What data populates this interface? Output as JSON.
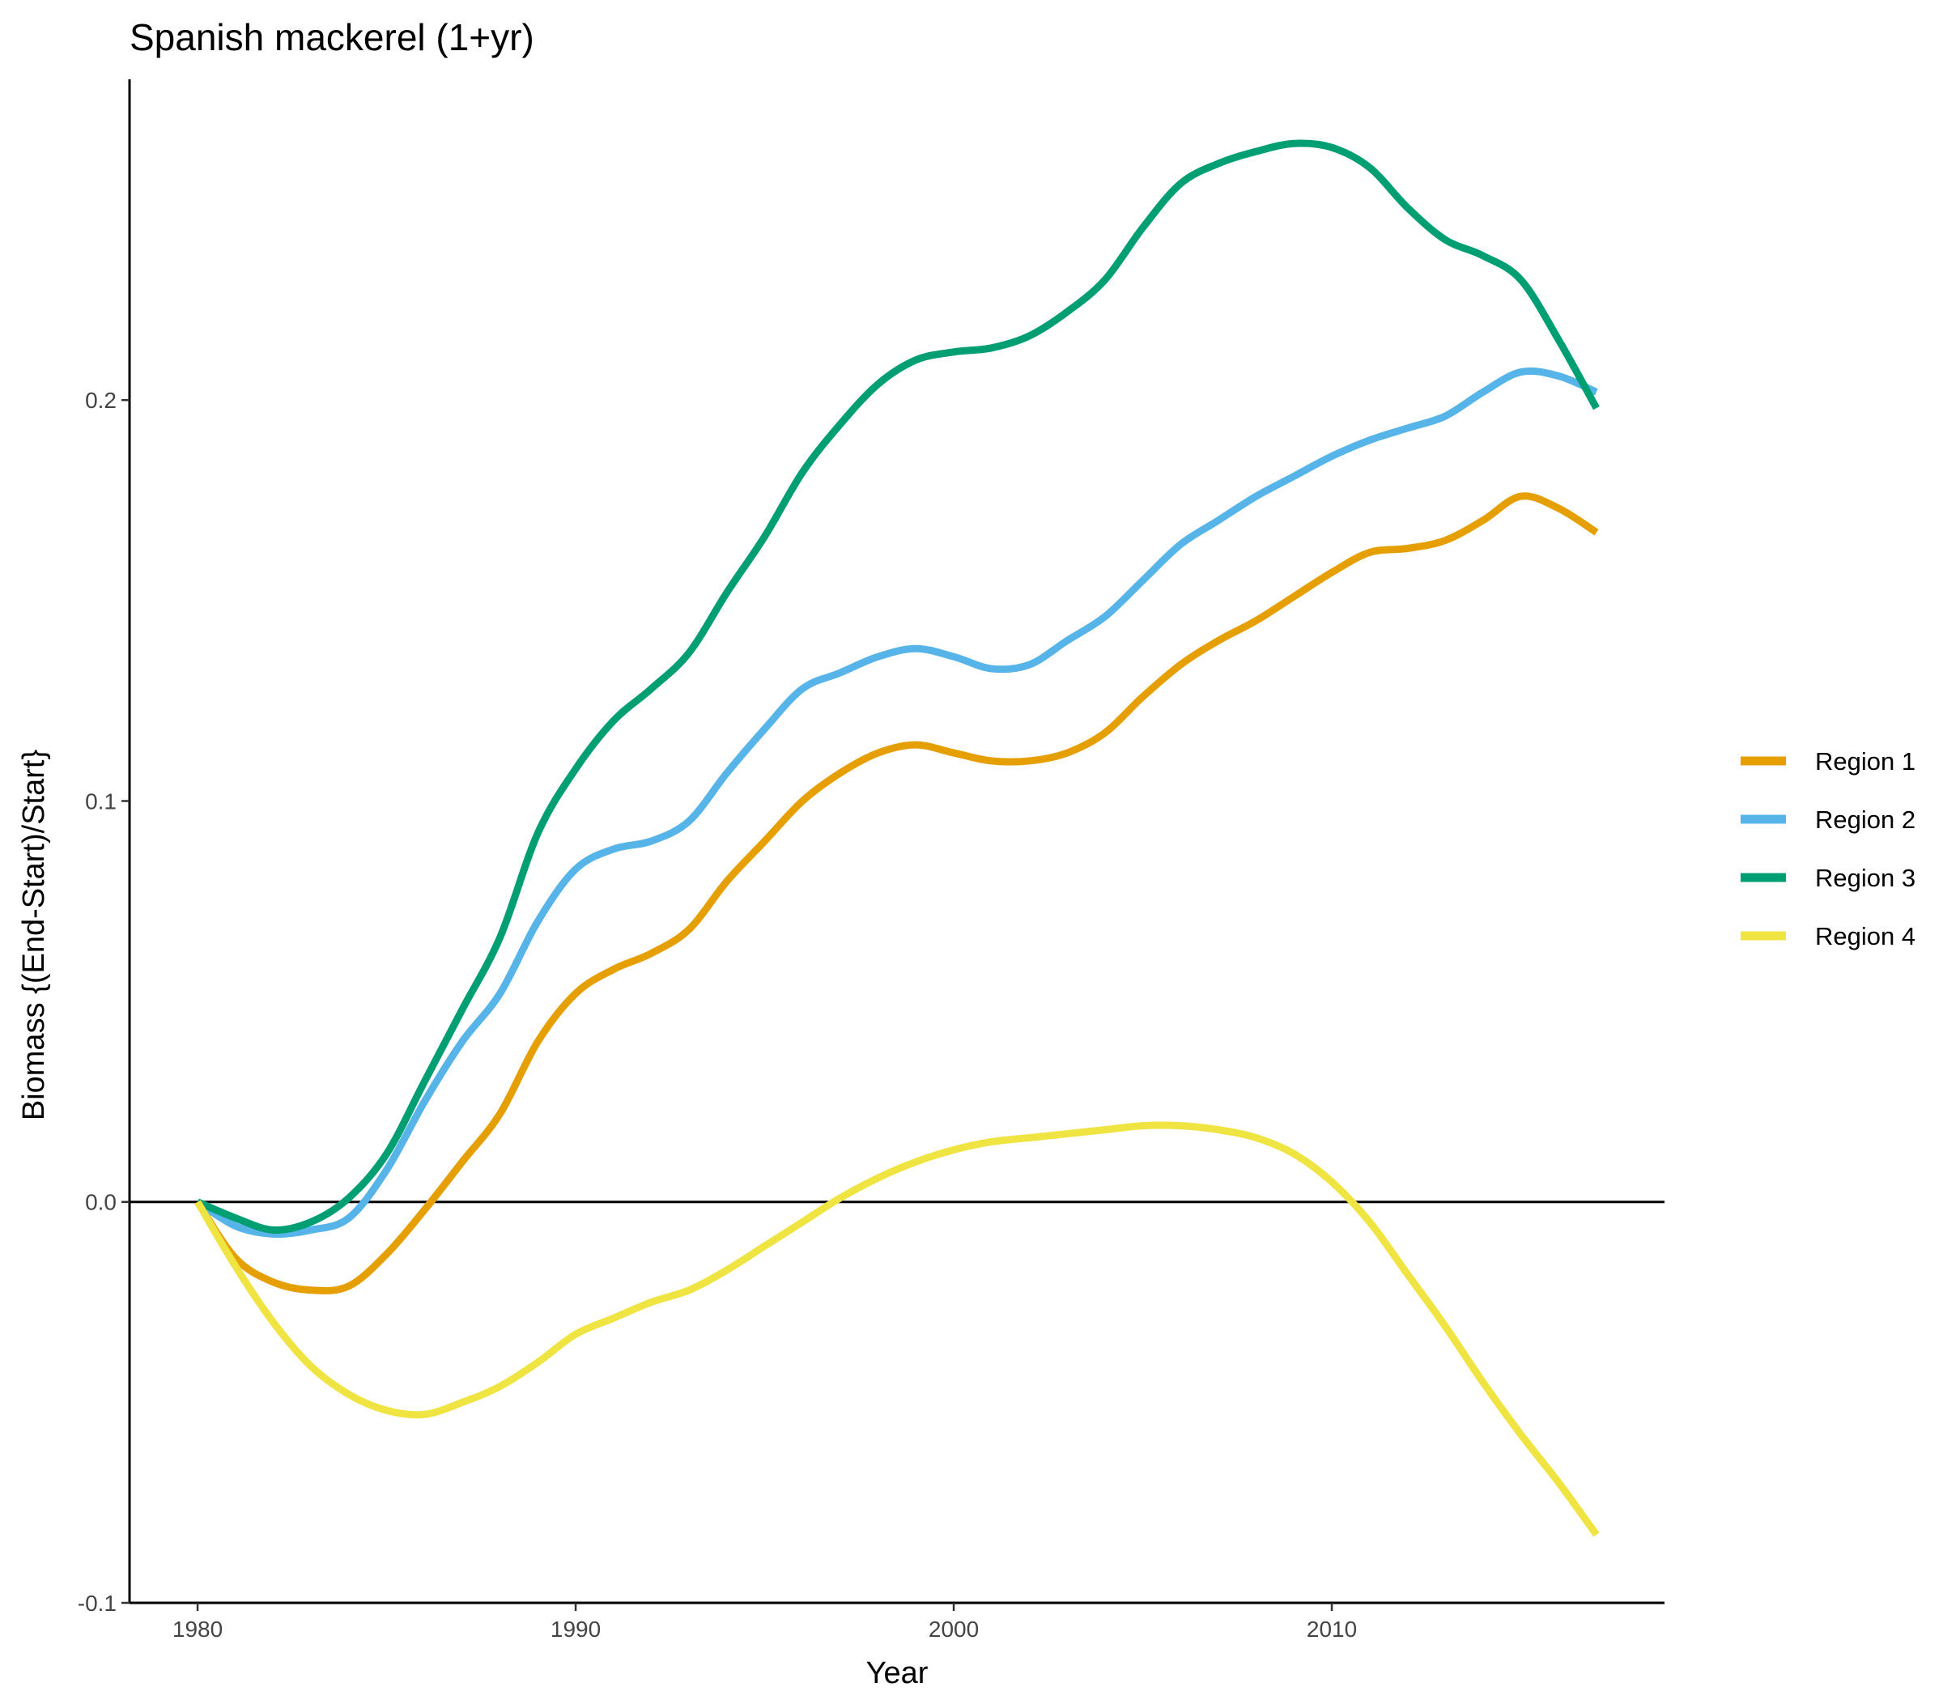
{
  "chart_data": {
    "type": "line",
    "title": "Spanish mackerel (1+yr)",
    "xlabel": "Year",
    "ylabel": "Biomass {(End-Start)/Start}",
    "xlim": [
      1978.2,
      2018.8
    ],
    "ylim": [
      -0.1,
      0.28
    ],
    "x_ticks": [
      1980,
      1990,
      2000,
      2010
    ],
    "x_tick_labels": [
      "1980",
      "1990",
      "2000",
      "2010"
    ],
    "y_ticks": [
      -0.1,
      0.0,
      0.1,
      0.2
    ],
    "y_tick_labels": [
      "-0.1",
      "0.0",
      "0.1",
      "0.2"
    ],
    "reference_line_y": 0,
    "grid": false,
    "legend_position": "right",
    "series": [
      {
        "name": "Region 1",
        "color": "#E69F00",
        "x": [
          1980,
          1981,
          1982,
          1983,
          1984,
          1985,
          1986,
          1987,
          1988,
          1989,
          1990,
          1991,
          1992,
          1993,
          1994,
          1995,
          1996,
          1997,
          1998,
          1999,
          2000,
          2001,
          2002,
          2003,
          2004,
          2005,
          2006,
          2007,
          2008,
          2009,
          2010,
          2011,
          2012,
          2013,
          2014,
          2015,
          2016,
          2017
        ],
        "y": [
          0.0,
          -0.014,
          -0.02,
          -0.022,
          -0.021,
          -0.013,
          -0.002,
          0.01,
          0.022,
          0.04,
          0.052,
          0.058,
          0.062,
          0.068,
          0.08,
          0.09,
          0.1,
          0.107,
          0.112,
          0.114,
          0.112,
          0.11,
          0.11,
          0.112,
          0.117,
          0.126,
          0.134,
          0.14,
          0.145,
          0.151,
          0.157,
          0.162,
          0.163,
          0.165,
          0.17,
          0.176,
          0.173,
          0.167
        ]
      },
      {
        "name": "Region 2",
        "color": "#56B4E9",
        "x": [
          1980,
          1981,
          1982,
          1983,
          1984,
          1985,
          1986,
          1987,
          1988,
          1989,
          1990,
          1991,
          1992,
          1993,
          1994,
          1995,
          1996,
          1997,
          1998,
          1999,
          2000,
          2001,
          2002,
          2003,
          2004,
          2005,
          2006,
          2007,
          2008,
          2009,
          2010,
          2011,
          2012,
          2013,
          2014,
          2015,
          2016,
          2017
        ],
        "y": [
          0.0,
          -0.006,
          -0.008,
          -0.007,
          -0.004,
          0.008,
          0.025,
          0.04,
          0.052,
          0.07,
          0.083,
          0.088,
          0.09,
          0.095,
          0.107,
          0.118,
          0.128,
          0.132,
          0.136,
          0.138,
          0.136,
          0.133,
          0.134,
          0.14,
          0.146,
          0.155,
          0.164,
          0.17,
          0.176,
          0.181,
          0.186,
          0.19,
          0.193,
          0.196,
          0.202,
          0.207,
          0.206,
          0.202
        ]
      },
      {
        "name": "Region 3",
        "color": "#009E73",
        "x": [
          1980,
          1981,
          1982,
          1983,
          1984,
          1985,
          1986,
          1987,
          1988,
          1989,
          1990,
          1991,
          1992,
          1993,
          1994,
          1995,
          1996,
          1997,
          1998,
          1999,
          2000,
          2001,
          2002,
          2003,
          2004,
          2005,
          2006,
          2007,
          2008,
          2009,
          2010,
          2011,
          2012,
          2013,
          2014,
          2015,
          2016,
          2017
        ],
        "y": [
          0.0,
          -0.004,
          -0.007,
          -0.005,
          0.001,
          0.012,
          0.03,
          0.048,
          0.066,
          0.092,
          0.108,
          0.12,
          0.128,
          0.137,
          0.152,
          0.166,
          0.182,
          0.194,
          0.204,
          0.21,
          0.212,
          0.213,
          0.216,
          0.222,
          0.23,
          0.243,
          0.254,
          0.259,
          0.262,
          0.264,
          0.263,
          0.258,
          0.248,
          0.24,
          0.236,
          0.23,
          0.215,
          0.198
        ]
      },
      {
        "name": "Region 4",
        "color": "#F0E442",
        "x": [
          1980,
          1981,
          1982,
          1983,
          1984,
          1985,
          1986,
          1987,
          1988,
          1989,
          1990,
          1991,
          1992,
          1993,
          1994,
          1995,
          1996,
          1997,
          1998,
          1999,
          2000,
          2001,
          2002,
          2003,
          2004,
          2005,
          2006,
          2007,
          2008,
          2009,
          2010,
          2011,
          2012,
          2013,
          2014,
          2015,
          2016,
          2017
        ],
        "y": [
          0.0,
          -0.016,
          -0.03,
          -0.041,
          -0.048,
          -0.052,
          -0.053,
          -0.05,
          -0.046,
          -0.04,
          -0.033,
          -0.029,
          -0.025,
          -0.022,
          -0.017,
          -0.011,
          -0.005,
          0.001,
          0.006,
          0.01,
          0.013,
          0.015,
          0.016,
          0.017,
          0.018,
          0.019,
          0.019,
          0.018,
          0.016,
          0.012,
          0.005,
          -0.005,
          -0.018,
          -0.031,
          -0.045,
          -0.058,
          -0.07,
          -0.083
        ]
      }
    ]
  }
}
